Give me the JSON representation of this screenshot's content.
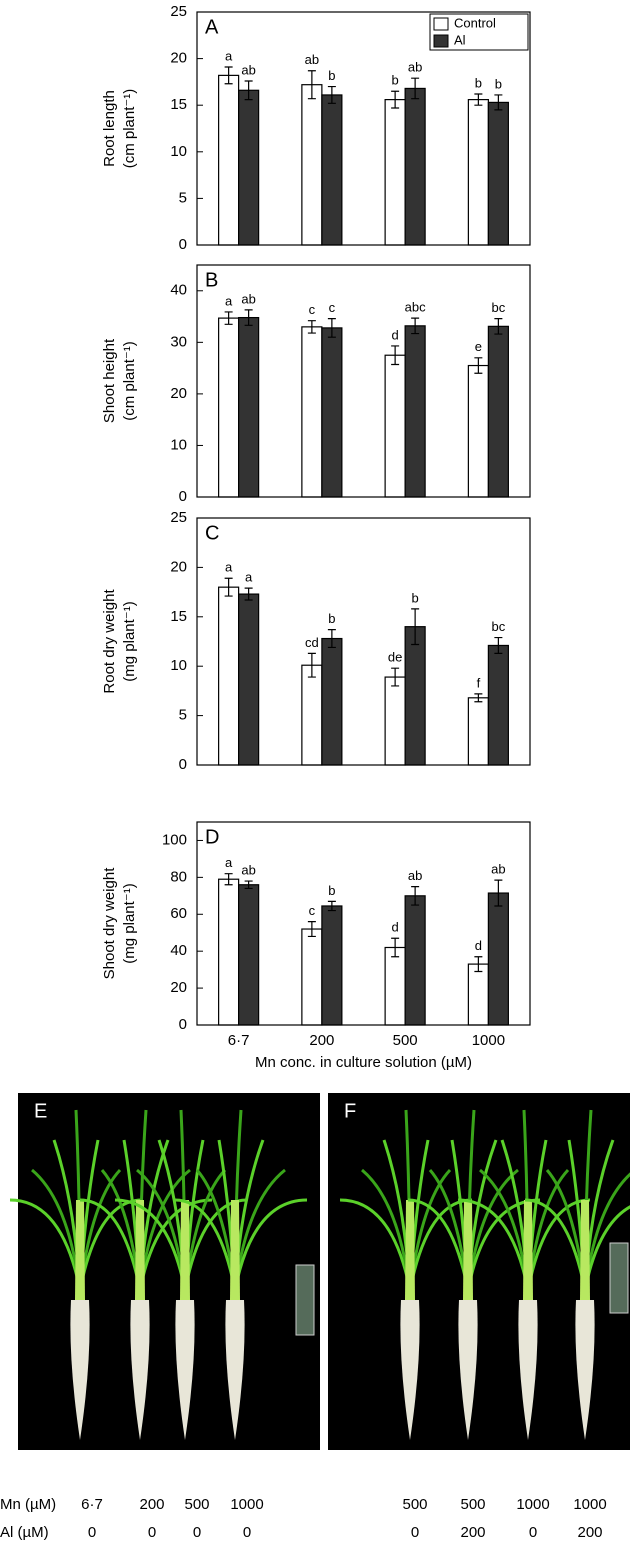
{
  "chart_data": [
    {
      "type": "bar",
      "panel": "A",
      "ylabel": [
        "Root length",
        "(cm plant⁻¹)"
      ],
      "ylim": [
        0,
        25
      ],
      "yticks": [
        0,
        5,
        10,
        15,
        20,
        25
      ],
      "categories": [
        null,
        null,
        null,
        null
      ],
      "legend": "upper right",
      "series": [
        {
          "name": "Control",
          "color": "#ffffff",
          "values": [
            18.2,
            17.2,
            15.6,
            15.6
          ],
          "errors": [
            0.9,
            1.5,
            0.9,
            0.6
          ],
          "letters": [
            "a",
            "ab",
            "b",
            "b"
          ]
        },
        {
          "name": "Al",
          "color": "#333333",
          "values": [
            16.6,
            16.1,
            16.8,
            15.3
          ],
          "errors": [
            1.0,
            0.9,
            1.1,
            0.8
          ],
          "letters": [
            "ab",
            "b",
            "ab",
            "b"
          ]
        }
      ]
    },
    {
      "type": "bar",
      "panel": "B",
      "ylabel": [
        "Shoot height",
        "(cm plant⁻¹)"
      ],
      "ylim": [
        0,
        45
      ],
      "yticks": [
        0,
        10,
        20,
        30,
        40
      ],
      "categories": [
        null,
        null,
        null,
        null
      ],
      "series": [
        {
          "color": "#ffffff",
          "values": [
            34.7,
            33.0,
            27.5,
            25.5
          ],
          "errors": [
            1.2,
            1.2,
            1.8,
            1.5
          ],
          "letters": [
            "a",
            "c",
            "d",
            "e"
          ]
        },
        {
          "color": "#333333",
          "values": [
            34.8,
            32.8,
            33.2,
            33.1
          ],
          "errors": [
            1.5,
            1.8,
            1.5,
            1.5
          ],
          "letters": [
            "ab",
            "c",
            "abc",
            "bc"
          ]
        }
      ]
    },
    {
      "type": "bar",
      "panel": "C",
      "ylabel": [
        "Root dry weight",
        "(mg plant⁻¹)"
      ],
      "ylim": [
        0,
        25
      ],
      "yticks": [
        0,
        5,
        10,
        15,
        20,
        25
      ],
      "categories": [
        null,
        null,
        null,
        null
      ],
      "series": [
        {
          "color": "#ffffff",
          "values": [
            18.0,
            10.1,
            8.9,
            6.8
          ],
          "errors": [
            0.9,
            1.2,
            0.9,
            0.4
          ],
          "letters": [
            "a",
            "cd",
            "de",
            "f"
          ]
        },
        {
          "color": "#333333",
          "values": [
            17.3,
            12.8,
            14.0,
            12.1
          ],
          "errors": [
            0.6,
            0.9,
            1.8,
            0.8
          ],
          "letters": [
            "a",
            "b",
            "b",
            "bc"
          ]
        }
      ]
    },
    {
      "type": "bar",
      "panel": "D",
      "ylabel": [
        "Shoot dry weight",
        "(mg plant⁻¹)"
      ],
      "ylim": [
        0,
        110
      ],
      "yticks": [
        0,
        20,
        40,
        60,
        80,
        100
      ],
      "categories": [
        "6·7",
        "200",
        "500",
        "1000"
      ],
      "xlabel": "Mn conc. in culture solution (µM)",
      "series": [
        {
          "color": "#ffffff",
          "values": [
            79,
            52,
            42,
            33
          ],
          "errors": [
            3,
            4,
            5,
            4
          ],
          "letters": [
            "a",
            "c",
            "d",
            "d"
          ]
        },
        {
          "color": "#333333",
          "values": [
            76,
            64.5,
            70,
            71.5
          ],
          "errors": [
            2,
            2.5,
            5,
            7
          ],
          "letters": [
            "ab",
            "b",
            "ab",
            "ab"
          ]
        }
      ]
    }
  ],
  "photo_panels": {
    "labels": [
      "E",
      "F"
    ],
    "row_labels": [
      "Mn (µM)",
      "Al (µM)"
    ],
    "E": {
      "mn": [
        "6·7",
        "200",
        "500",
        "1000"
      ],
      "al": [
        "0",
        "0",
        "0",
        "0"
      ]
    },
    "F": {
      "mn": [
        "500",
        "500",
        "1000",
        "1000"
      ],
      "al": [
        "0",
        "200",
        "0",
        "200"
      ]
    }
  }
}
